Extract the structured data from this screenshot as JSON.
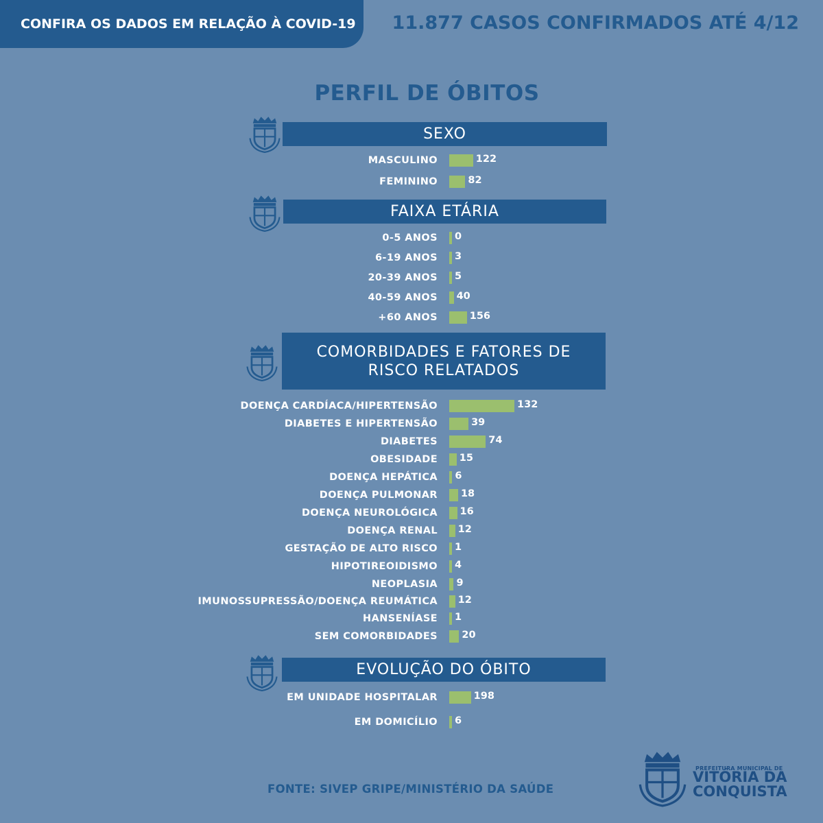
{
  "header": {
    "tab_label": "CONFIRA OS DADOS EM RELAÇÃO À COVID-19",
    "confirmed_cases": "11.877 CASOS CONFIRMADOS ATÉ 4/12"
  },
  "title": "PERFIL DE ÓBITOS",
  "source": "FONTE: SIVEP GRIPE/MINISTÉRIO DA SAÚDE",
  "logo": {
    "line1": "PREFEITURA MUNICIPAL DE",
    "line2": "VITÓRIA DA",
    "line3": "CONQUISTA"
  },
  "colors": {
    "background": "#6b8db1",
    "banner": "#245b8f",
    "bar": "#9bbf6e",
    "text": "#ffffff"
  },
  "chart_data": [
    {
      "type": "bar",
      "title": "SEXO",
      "categories": [
        "MASCULINO",
        "FEMININO"
      ],
      "values": [
        122,
        82
      ]
    },
    {
      "type": "bar",
      "title": "FAIXA ETÁRIA",
      "categories": [
        "0-5 ANOS",
        "6-19 ANOS",
        "20-39 ANOS",
        "40-59 ANOS",
        "+60 ANOS"
      ],
      "values": [
        0,
        3,
        5,
        40,
        156
      ]
    },
    {
      "type": "bar",
      "title": "COMORBIDADES E FATORES DE RISCO RELATADOS",
      "categories": [
        "DOENÇA CARDÍACA/HIPERTENSÃO",
        "DIABETES E HIPERTENSÃO",
        "DIABETES",
        "OBESIDADE",
        "DOENÇA HEPÁTICA",
        "DOENÇA PULMONAR",
        "DOENÇA NEUROLÓGICA",
        "DOENÇA RENAL",
        "GESTAÇÃO DE ALTO RISCO",
        "HIPOTIREOIDISMO",
        "NEOPLASIA",
        "IMUNOSSUPRESSÃO/DOENÇA REUMÁTICA",
        "HANSENÍASE",
        "SEM COMORBIDADES"
      ],
      "values": [
        132,
        39,
        74,
        15,
        6,
        18,
        16,
        12,
        1,
        4,
        9,
        12,
        1,
        20
      ]
    },
    {
      "type": "bar",
      "title": "EVOLUÇÃO DO ÓBITO",
      "categories": [
        "EM UNIDADE HOSPITALAR",
        "EM DOMICÍLIO"
      ],
      "values": [
        198,
        6
      ]
    }
  ]
}
